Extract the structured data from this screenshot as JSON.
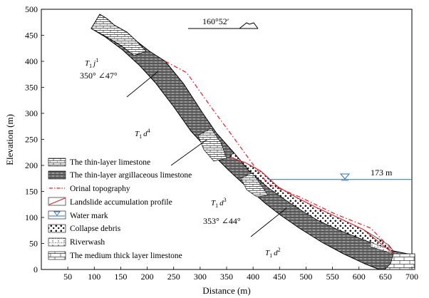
{
  "figure": {
    "axes": {
      "x_title": "Distance (m)",
      "y_title": "Elevation (m)",
      "x_ticks": [
        "50",
        "100",
        "150",
        "200",
        "250",
        "300",
        "350",
        "400",
        "450",
        "500",
        "550",
        "600",
        "650",
        "700"
      ],
      "y_ticks": [
        "0",
        "50",
        "100",
        "150",
        "200",
        "250",
        "300",
        "350",
        "400",
        "450",
        "500"
      ],
      "x_range": [
        0,
        700
      ],
      "y_range": [
        0,
        500
      ]
    },
    "orientation_label": "160°52′",
    "water_level_label": "173 m",
    "water_level": 173,
    "attitudes": {
      "upper": "350° ∠47°",
      "lower": "353° ∠44°"
    },
    "strata": {
      "t1j1": {
        "base": "T",
        "sub": "1",
        "name": "j",
        "sup": "1"
      },
      "t1d4": {
        "base": "T",
        "sub": "1",
        "name": "d",
        "sup": "4"
      },
      "t1d3": {
        "base": "T",
        "sub": "1",
        "name": "d",
        "sup": "3"
      },
      "t1d2": {
        "base": "T",
        "sub": "1",
        "name": "d",
        "sup": "2"
      }
    },
    "legend": [
      {
        "key": "thin-layer-limestone",
        "label": "The thin-layer limestone"
      },
      {
        "key": "thin-layer-argillaceous-limestone",
        "label": "The thin-layer argillaceous limestone"
      },
      {
        "key": "orinal-topography",
        "label": "Orinal topography"
      },
      {
        "key": "landslide-accumulation-profile",
        "label": "Landslide accumulation profile"
      },
      {
        "key": "water-mark",
        "label": "Water mark"
      },
      {
        "key": "collapse-debris",
        "label": "Collapse debris"
      },
      {
        "key": "riverwash",
        "label": "Riverwash"
      },
      {
        "key": "medium-thick-layer-limestone",
        "label": "The medium thick layer limestone"
      }
    ],
    "colors": {
      "orinal_topography": "#e0202a",
      "water": "#2f6fb6"
    }
  }
}
